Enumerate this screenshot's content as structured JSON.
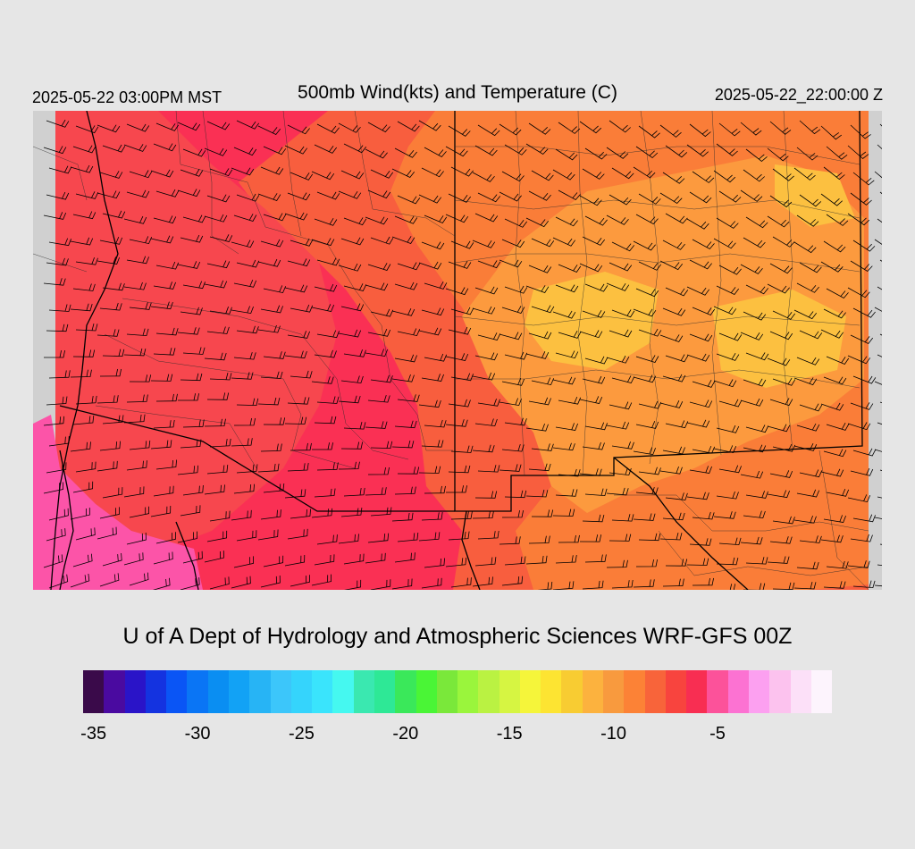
{
  "header": {
    "local_time": "2025-05-22 03:00PM MST",
    "title": "500mb Wind(kts) and Temperature (C)",
    "utc_time": "2025-05-22_22:00:00 Z"
  },
  "credit": "U of A Dept of Hydrology and Atmospheric Sciences WRF-GFS 00Z",
  "colorbar": {
    "colors": [
      "#3a0a4a",
      "#4a0aa0",
      "#2a14c8",
      "#1433e0",
      "#0a55f5",
      "#0a75f5",
      "#0a8ef2",
      "#12a2f5",
      "#27b4f5",
      "#3cc6fa",
      "#35d4fc",
      "#3ae4fc",
      "#45f8f0",
      "#3ae8b0",
      "#2ee896",
      "#3ae85a",
      "#4af536",
      "#7ae83a",
      "#9af53c",
      "#baf242",
      "#d6f542",
      "#f5f53a",
      "#fde432",
      "#f8cc32",
      "#fcb23e",
      "#f89a3e",
      "#fc8236",
      "#f8643a",
      "#f8443e",
      "#f82e52",
      "#fc529a",
      "#fc72d2",
      "#fca0f0",
      "#fcc2ee",
      "#fce0f8",
      "#fdf4fd"
    ],
    "tick_labels": [
      "-35",
      "-30",
      "-25",
      "-20",
      "-15",
      "-10",
      "-5"
    ]
  },
  "map": {
    "field_colors": {
      "pink": "#fc54a8",
      "crimson": "#fa3054",
      "red": "#f7474e",
      "red_orange": "#f85e3e",
      "orange": "#fa7d38",
      "light_orange": "#fc9a3e",
      "yellow_orange": "#fcc040",
      "missing": "#d0d0d0"
    }
  }
}
